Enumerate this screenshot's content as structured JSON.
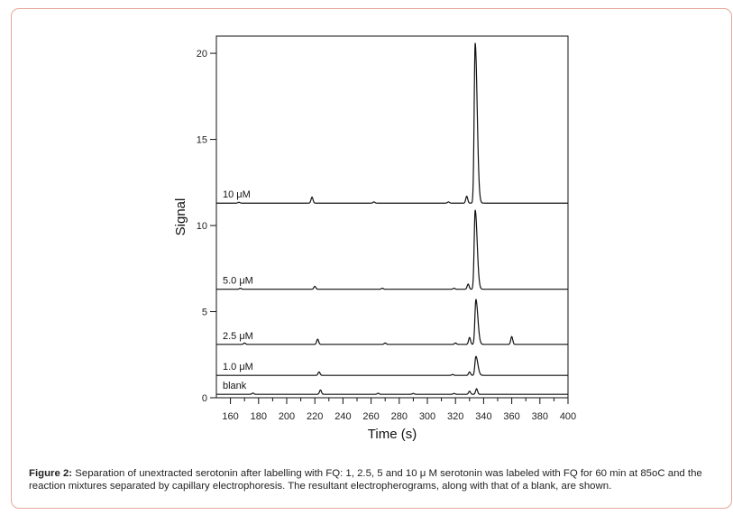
{
  "chart_data": {
    "type": "line",
    "xlabel": "Time (s)",
    "ylabel": "Signal",
    "xlim": [
      150,
      400
    ],
    "ylim": [
      0,
      21
    ],
    "xticks": [
      160,
      180,
      200,
      220,
      240,
      260,
      280,
      300,
      320,
      340,
      360,
      380,
      400
    ],
    "yticks": [
      0,
      5,
      10,
      15,
      20
    ],
    "grid": false,
    "series": [
      {
        "name": "blank",
        "baseline": 0.2,
        "peaks": [
          [
            176,
            0.07
          ],
          [
            224,
            0.25
          ],
          [
            265,
            0.06
          ],
          [
            290,
            0.05
          ],
          [
            319,
            0.05
          ],
          [
            330,
            0.18
          ],
          [
            335,
            0.32
          ]
        ]
      },
      {
        "name": "1.0 μM",
        "baseline": 1.3,
        "peaks": [
          [
            223,
            0.2
          ],
          [
            318,
            0.05
          ],
          [
            330,
            0.2
          ],
          [
            334.5,
            1.1
          ]
        ]
      },
      {
        "name": "2.5 μM",
        "baseline": 3.1,
        "peaks": [
          [
            170,
            0.08
          ],
          [
            222,
            0.3
          ],
          [
            270,
            0.08
          ],
          [
            320,
            0.08
          ],
          [
            330,
            0.4
          ],
          [
            334.5,
            2.6
          ],
          [
            360,
            0.45
          ]
        ]
      },
      {
        "name": "5.0 μM",
        "baseline": 6.3,
        "peaks": [
          [
            167,
            0.06
          ],
          [
            220,
            0.17
          ],
          [
            268,
            0.06
          ],
          [
            319,
            0.06
          ],
          [
            329,
            0.3
          ],
          [
            334,
            4.6
          ]
        ]
      },
      {
        "name": "10 μM",
        "baseline": 11.3,
        "peaks": [
          [
            166,
            0.05
          ],
          [
            218,
            0.35
          ],
          [
            262,
            0.07
          ],
          [
            315,
            0.07
          ],
          [
            328,
            0.4
          ],
          [
            334,
            9.3
          ]
        ]
      }
    ]
  },
  "caption": {
    "label": "Figure 2:",
    "text": "Separation of unextracted serotonin after labelling with FQ: 1, 2.5, 5 and 10  μ M serotonin was labeled with FQ for 60 min at 85oC and the reaction mixtures separated by capillary electrophoresis. The resultant electropherograms, along with that of a blank, are shown."
  }
}
